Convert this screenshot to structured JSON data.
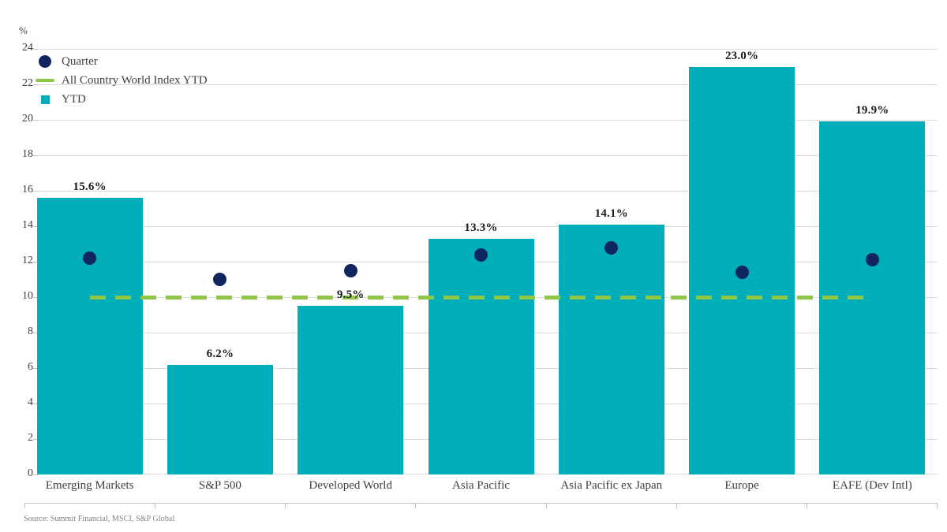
{
  "colors": {
    "bar": "#00AEB9",
    "dot": "#10265F",
    "acwi_line": "#8FC845",
    "gridline": "#D9D9D9",
    "axis_text": "#404040",
    "value_label": "#1A1A1A",
    "source_text": "#808080"
  },
  "axis": {
    "unit_label": "%"
  },
  "legend": {
    "items": [
      {
        "label": "Quarter",
        "marker": "circle"
      },
      {
        "label": "All Country World Index YTD",
        "marker": "dash"
      },
      {
        "label": "YTD",
        "marker": "square"
      }
    ]
  },
  "footer": {
    "source": "Source: Summit Financial, MSCI, S&P Global"
  },
  "chart_data": {
    "type": "bar",
    "title": "",
    "categories": [
      "Emerging Markets",
      "S&P 500",
      "Developed World",
      "Asia Pacific",
      "Asia Pacific ex Japan",
      "Europe",
      "EAFE (Dev Intl)"
    ],
    "series": [
      {
        "name": "YTD",
        "type": "bar",
        "values": [
          15.6,
          6.2,
          9.5,
          13.3,
          14.1,
          23.0,
          19.9
        ],
        "data_labels": [
          "15.6%",
          "6.2%",
          "9.5%",
          "13.3%",
          "14.1%",
          "23.0%",
          "19.9%"
        ],
        "color": "#00AEB9"
      },
      {
        "name": "Quarter",
        "type": "scatter",
        "values": [
          12.2,
          11.0,
          11.5,
          12.4,
          12.8,
          11.4,
          12.1
        ],
        "color": "#10265F"
      },
      {
        "name": "All Country World Index YTD",
        "type": "dashed-line",
        "value": 10.0,
        "color": "#8FC845"
      }
    ],
    "xlabel": "",
    "ylabel": "%",
    "ylim": [
      0,
      24
    ],
    "ytick_step": 2,
    "grid": true,
    "legend_position": "top-left"
  }
}
